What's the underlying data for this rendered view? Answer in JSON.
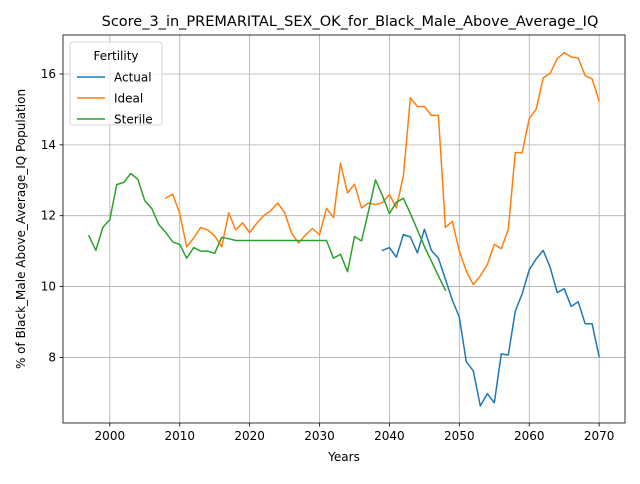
{
  "chart_data": {
    "type": "line",
    "title": "Score_3_in_PREMARITAL_SEX_OK_for_Black_Male_Above_Average_IQ",
    "xlabel": "Years",
    "ylabel": "% of Black_Male Above_Average_IQ Population",
    "xlim": [
      1993.3,
      2073.7
    ],
    "ylim": [
      6.15,
      17.1
    ],
    "xticks": [
      2000,
      2010,
      2020,
      2030,
      2040,
      2050,
      2060,
      2070
    ],
    "yticks": [
      8,
      10,
      12,
      14,
      16
    ],
    "grid": true,
    "legend": {
      "title": "Fertility",
      "placement": "top-left"
    },
    "series": [
      {
        "name": "Actual",
        "color": "#1f77b4",
        "x": [
          2039,
          2040,
          2041,
          2042,
          2043,
          2044,
          2045,
          2046,
          2047,
          2048,
          2049,
          2050,
          2051,
          2052,
          2053,
          2054,
          2055,
          2056,
          2057,
          2058,
          2059,
          2060,
          2061,
          2062,
          2063,
          2064,
          2065,
          2066,
          2067,
          2068,
          2069,
          2070
        ],
        "y": [
          11.02,
          11.1,
          10.83,
          11.47,
          11.4,
          10.95,
          11.62,
          11.02,
          10.8,
          10.21,
          9.62,
          9.14,
          7.88,
          7.62,
          6.63,
          6.98,
          6.72,
          8.1,
          8.07,
          9.31,
          9.8,
          10.47,
          10.78,
          11.02,
          10.54,
          9.83,
          9.94,
          9.44,
          9.57,
          8.95,
          8.95,
          8.02
        ]
      },
      {
        "name": "Ideal",
        "color": "#ff7f0e",
        "x": [
          2008,
          2009,
          2010,
          2011,
          2012,
          2013,
          2014,
          2015,
          2016,
          2017,
          2018,
          2019,
          2020,
          2021,
          2022,
          2023,
          2024,
          2025,
          2026,
          2027,
          2028,
          2029,
          2030,
          2031,
          2032,
          2033,
          2034,
          2035,
          2036,
          2037,
          2038,
          2039,
          2040,
          2041,
          2042,
          2043,
          2044,
          2045,
          2046,
          2047,
          2048,
          2049,
          2050,
          2051,
          2052,
          2053,
          2054,
          2055,
          2056,
          2057,
          2058,
          2059,
          2060,
          2061,
          2062,
          2063,
          2064,
          2065,
          2066,
          2067,
          2068,
          2069,
          2070
        ],
        "y": [
          12.5,
          12.61,
          12.06,
          11.12,
          11.37,
          11.67,
          11.6,
          11.43,
          11.12,
          12.08,
          11.6,
          11.8,
          11.52,
          11.78,
          12.0,
          12.14,
          12.36,
          12.09,
          11.5,
          11.23,
          11.46,
          11.64,
          11.46,
          12.21,
          11.95,
          13.48,
          12.64,
          12.89,
          12.22,
          12.36,
          12.31,
          12.37,
          12.6,
          12.22,
          13.13,
          15.33,
          15.08,
          15.08,
          14.83,
          14.83,
          11.67,
          11.84,
          11.0,
          10.44,
          10.06,
          10.3,
          10.62,
          11.19,
          11.07,
          11.62,
          13.78,
          13.78,
          14.74,
          15.01,
          15.89,
          16.02,
          16.43,
          16.6,
          16.48,
          16.45,
          15.95,
          15.86,
          15.24
        ]
      },
      {
        "name": "Sterile",
        "color": "#2ca02c",
        "x": [
          1997,
          1998,
          1999,
          2000,
          2001,
          2002,
          2003,
          2004,
          2005,
          2006,
          2007,
          2008,
          2009,
          2010,
          2011,
          2012,
          2013,
          2014,
          2015,
          2016,
          2017,
          2018,
          2019,
          2020,
          2021,
          2022,
          2023,
          2024,
          2025,
          2026,
          2027,
          2028,
          2029,
          2030,
          2031,
          2032,
          2033,
          2034,
          2035,
          2036,
          2037,
          2038,
          2039,
          2040,
          2041,
          2042,
          2043,
          2044,
          2045,
          2046,
          2047,
          2048
        ],
        "y": [
          11.43,
          11.02,
          11.67,
          11.89,
          12.88,
          12.94,
          13.19,
          13.03,
          12.42,
          12.2,
          11.75,
          11.53,
          11.26,
          11.19,
          10.8,
          11.1,
          11.0,
          11.0,
          10.94,
          11.39,
          11.35,
          11.3,
          11.3,
          11.3,
          11.3,
          11.3,
          11.3,
          11.3,
          11.3,
          11.3,
          11.3,
          11.3,
          11.3,
          11.3,
          11.3,
          10.8,
          10.91,
          10.42,
          11.41,
          11.29,
          12.13,
          13.01,
          12.57,
          12.06,
          12.38,
          12.49,
          12.06,
          11.6,
          11.13,
          10.72,
          10.3,
          9.9
        ]
      }
    ]
  }
}
